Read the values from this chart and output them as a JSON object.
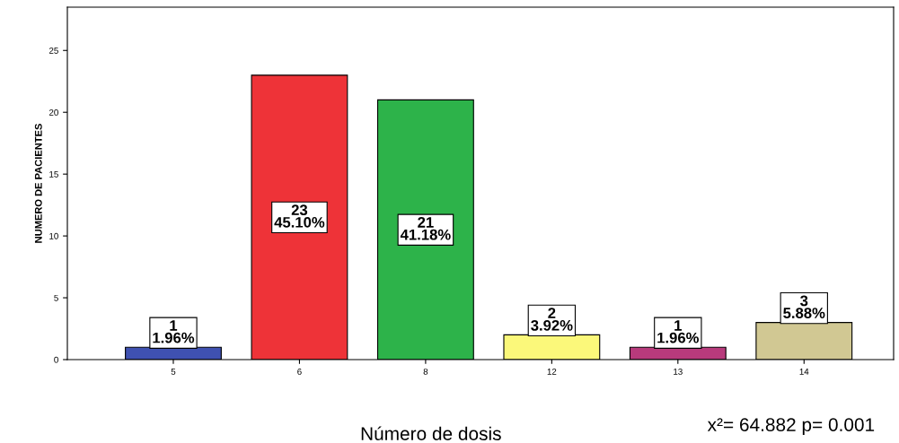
{
  "chart_data": {
    "type": "bar",
    "categories": [
      "5",
      "6",
      "8",
      "12",
      "13",
      "14"
    ],
    "values": [
      1,
      23,
      21,
      2,
      1,
      3
    ],
    "colors": [
      "#3f51b1",
      "#ee3338",
      "#2db34a",
      "#fbf87a",
      "#b83a7c",
      "#d1c893"
    ],
    "value_labels": [
      "1\n1.96%",
      "23\n45.10%",
      "21\n41.18%",
      "2\n3.92%",
      "1\n1.96%",
      "3\n5.88%"
    ],
    "ylabel": "NUMERO DE PACIENTES",
    "xlabel": "Número de dosis",
    "annotations": [
      "x²= 64.882 p= 0.001"
    ],
    "ylim": [
      0,
      28.5
    ],
    "yticks": [
      0,
      5,
      10,
      15,
      20,
      25
    ],
    "grid": false,
    "legend": false
  }
}
